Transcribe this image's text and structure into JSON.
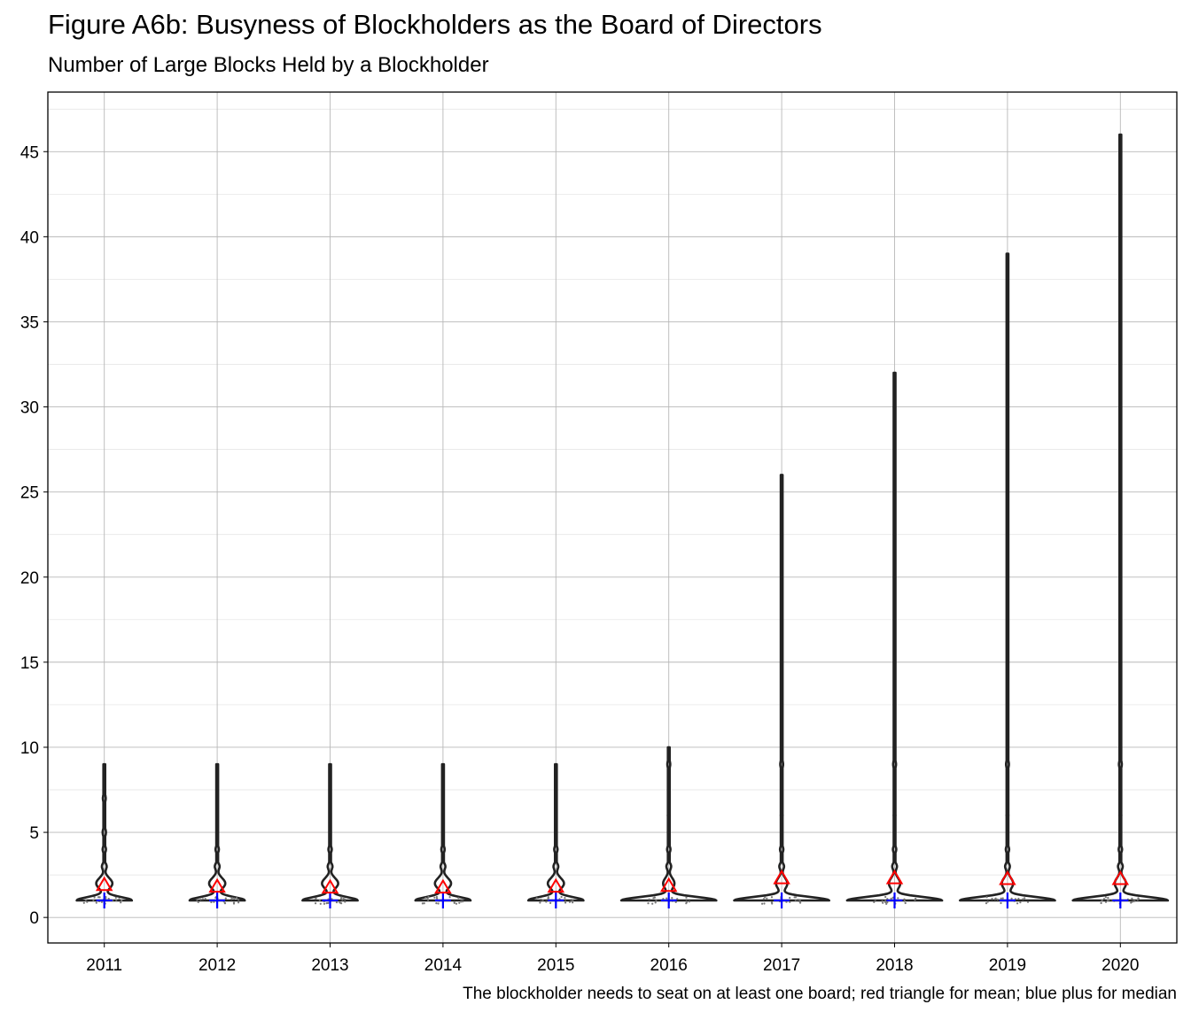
{
  "title": "Figure A6b: Busyness of Blockholders as the Board of Directors",
  "subtitle": "Number of Large Blocks Held by a Blockholder",
  "caption": "The blockholder needs to seat on at least one board; red triangle for mean; blue plus for median",
  "chart_data": {
    "type": "violin",
    "categories": [
      "2011",
      "2012",
      "2013",
      "2014",
      "2015",
      "2016",
      "2017",
      "2018",
      "2019",
      "2020"
    ],
    "ylim": [
      -1.5,
      48.5
    ],
    "yticks": [
      0,
      5,
      10,
      15,
      20,
      25,
      30,
      35,
      40,
      45
    ],
    "grid": true,
    "mean": [
      1.9,
      1.8,
      1.75,
      1.75,
      1.8,
      1.85,
      2.3,
      2.3,
      2.25,
      2.25
    ],
    "median": [
      1,
      1,
      1,
      1,
      1,
      1,
      1,
      1,
      1,
      1
    ],
    "max": [
      9,
      9,
      9,
      9,
      9,
      10,
      26,
      32,
      39,
      46
    ],
    "mean_marker": {
      "shape": "triangle",
      "color": "#ff0000"
    },
    "median_marker": {
      "shape": "plus",
      "color": "#0000ff"
    },
    "violin_color": "#222222"
  }
}
